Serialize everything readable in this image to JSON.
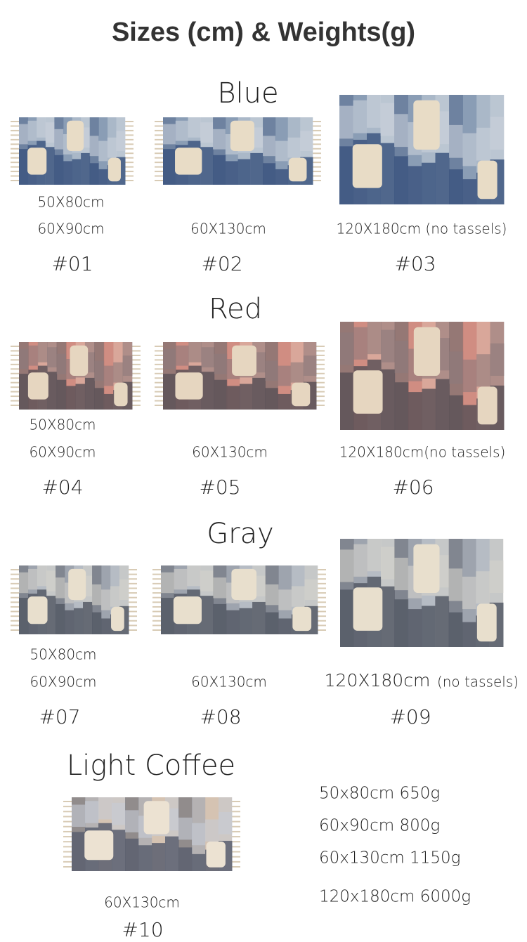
{
  "title": "Sizes (cm) & Weights(g)",
  "groups": [
    {
      "label": "Blue",
      "items": [
        {
          "sizes": [
            "50X80cm",
            "60X90cm"
          ],
          "code": "#01"
        },
        {
          "sizes": [
            "60X130cm"
          ],
          "code": "#02"
        },
        {
          "sizes": [
            "120X180cm (no tassels)"
          ],
          "code": "#03"
        }
      ]
    },
    {
      "label": "Red",
      "items": [
        {
          "sizes": [
            "50X80cm",
            "60X90cm"
          ],
          "code": "#04"
        },
        {
          "sizes": [
            "60X130cm"
          ],
          "code": "#05"
        },
        {
          "sizes": [
            "120X180cm(no tassels)"
          ],
          "code": "#06"
        }
      ]
    },
    {
      "label": "Gray",
      "items": [
        {
          "sizes": [
            "50X80cm",
            "60X90cm"
          ],
          "code": "#07"
        },
        {
          "sizes": [
            "60X130cm"
          ],
          "code": "#08"
        },
        {
          "sizes": [
            "120X180cm",
            "(no tassels)"
          ],
          "code": "#09"
        }
      ]
    },
    {
      "label": "Light  Coffee",
      "items": [
        {
          "sizes": [
            "60X130cm"
          ],
          "code": "#10"
        }
      ]
    }
  ],
  "weights": [
    "50x80cm 650g",
    "60x90cm 800g",
    "60x130cm 1150g",
    "120x180cm  6000g"
  ]
}
